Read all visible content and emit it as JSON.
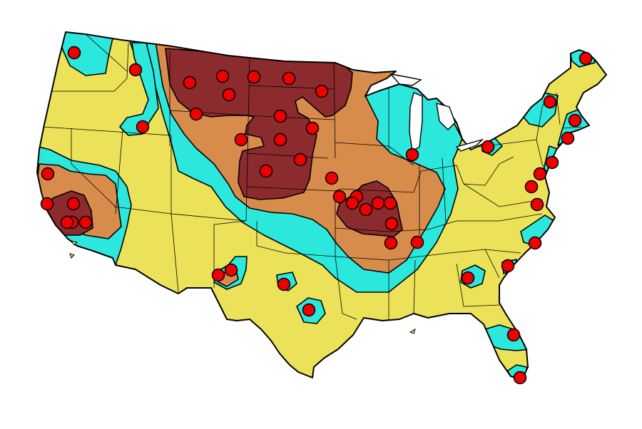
{
  "map": {
    "zone_colors": {
      "background": "#ffffff",
      "base": "#ebe25a",
      "zone_1": "#2ce8dc",
      "zone_2": "#d88c4c",
      "zone_3": "#8b2b2e"
    },
    "marker": {
      "fill": "#ee0000",
      "stroke": "#000000",
      "icon": "red-dot-marker"
    },
    "marker_count": 55
  }
}
